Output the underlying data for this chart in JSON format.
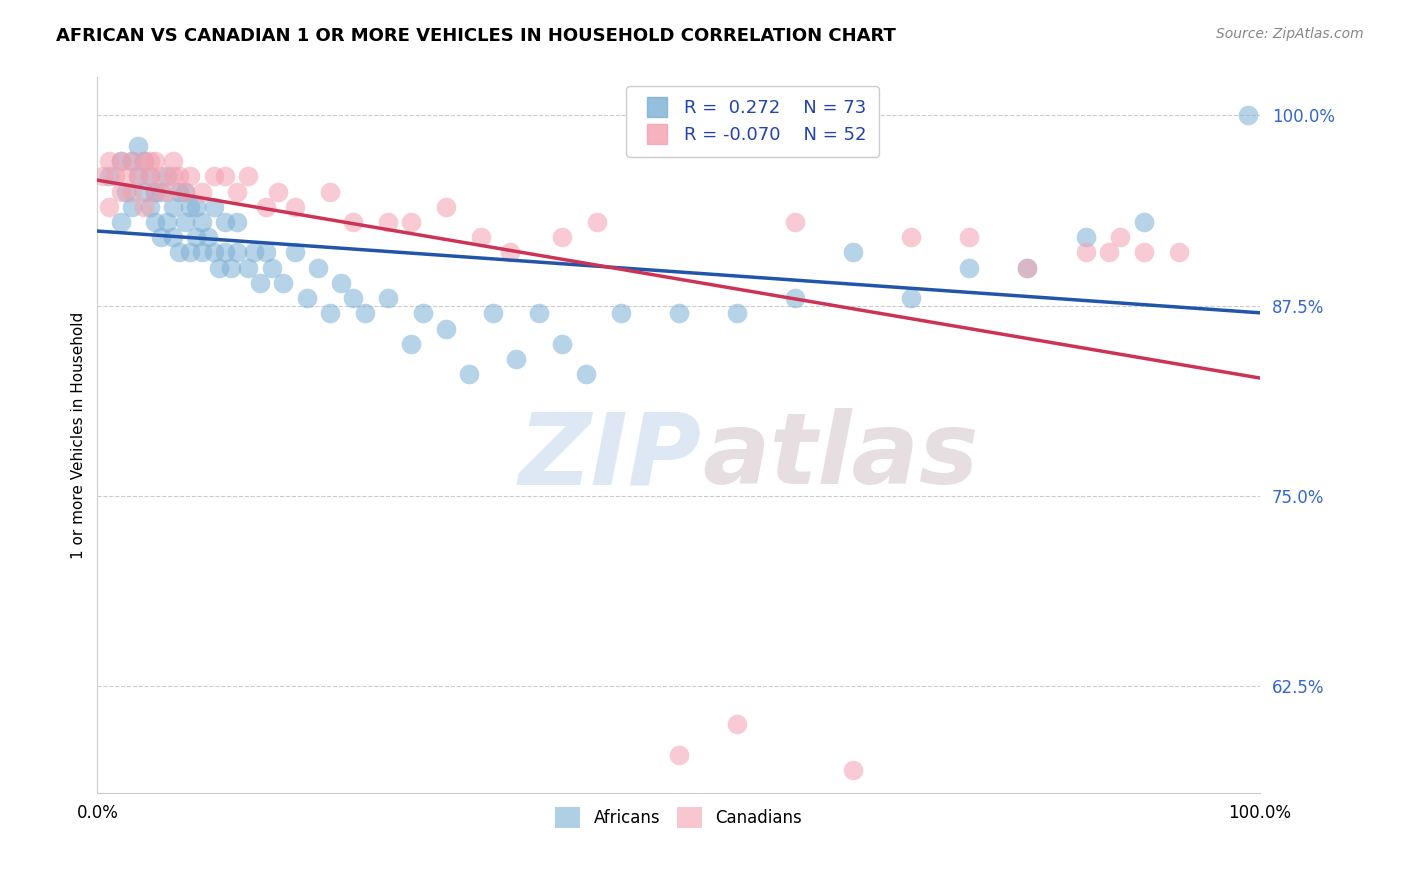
{
  "title": "AFRICAN VS CANADIAN 1 OR MORE VEHICLES IN HOUSEHOLD CORRELATION CHART",
  "source": "Source: ZipAtlas.com",
  "ylabel": "1 or more Vehicles in Household",
  "xlim": [
    0.0,
    1.0
  ],
  "ylim": [
    0.555,
    1.025
  ],
  "yticks": [
    0.625,
    0.75,
    0.875,
    1.0
  ],
  "ytick_labels": [
    "62.5%",
    "75.0%",
    "87.5%",
    "100.0%"
  ],
  "african_color": "#7bafd4",
  "canadian_color": "#f4a0b0",
  "african_line_color": "#2255aa",
  "canadian_line_color": "#cc3355",
  "african_R": 0.272,
  "african_N": 73,
  "canadian_R": -0.07,
  "canadian_N": 52,
  "legend_label_african": "Africans",
  "legend_label_canadian": "Canadians",
  "watermark_zip": "ZIP",
  "watermark_atlas": "atlas",
  "african_x": [
    0.01,
    0.02,
    0.02,
    0.025,
    0.03,
    0.03,
    0.035,
    0.035,
    0.04,
    0.04,
    0.045,
    0.045,
    0.05,
    0.05,
    0.055,
    0.055,
    0.06,
    0.06,
    0.065,
    0.065,
    0.07,
    0.07,
    0.075,
    0.075,
    0.08,
    0.08,
    0.085,
    0.085,
    0.09,
    0.09,
    0.095,
    0.1,
    0.1,
    0.105,
    0.11,
    0.11,
    0.115,
    0.12,
    0.12,
    0.13,
    0.135,
    0.14,
    0.145,
    0.15,
    0.16,
    0.17,
    0.18,
    0.19,
    0.2,
    0.21,
    0.22,
    0.23,
    0.25,
    0.27,
    0.28,
    0.3,
    0.32,
    0.34,
    0.36,
    0.38,
    0.4,
    0.42,
    0.45,
    0.5,
    0.55,
    0.6,
    0.65,
    0.7,
    0.75,
    0.8,
    0.85,
    0.9,
    0.99
  ],
  "african_y": [
    0.96,
    0.93,
    0.97,
    0.95,
    0.94,
    0.97,
    0.96,
    0.98,
    0.95,
    0.97,
    0.94,
    0.96,
    0.93,
    0.95,
    0.92,
    0.95,
    0.93,
    0.96,
    0.92,
    0.94,
    0.91,
    0.95,
    0.93,
    0.95,
    0.91,
    0.94,
    0.92,
    0.94,
    0.91,
    0.93,
    0.92,
    0.91,
    0.94,
    0.9,
    0.91,
    0.93,
    0.9,
    0.91,
    0.93,
    0.9,
    0.91,
    0.89,
    0.91,
    0.9,
    0.89,
    0.91,
    0.88,
    0.9,
    0.87,
    0.89,
    0.88,
    0.87,
    0.88,
    0.85,
    0.87,
    0.86,
    0.83,
    0.87,
    0.84,
    0.87,
    0.85,
    0.83,
    0.87,
    0.87,
    0.87,
    0.88,
    0.91,
    0.88,
    0.9,
    0.9,
    0.92,
    0.93,
    1.0
  ],
  "canadian_x": [
    0.005,
    0.01,
    0.01,
    0.015,
    0.02,
    0.02,
    0.025,
    0.03,
    0.03,
    0.035,
    0.04,
    0.04,
    0.045,
    0.045,
    0.05,
    0.05,
    0.055,
    0.06,
    0.065,
    0.065,
    0.07,
    0.075,
    0.08,
    0.09,
    0.1,
    0.11,
    0.12,
    0.13,
    0.145,
    0.155,
    0.17,
    0.2,
    0.22,
    0.25,
    0.27,
    0.3,
    0.33,
    0.355,
    0.4,
    0.43,
    0.5,
    0.55,
    0.6,
    0.65,
    0.7,
    0.75,
    0.8,
    0.85,
    0.87,
    0.88,
    0.9,
    0.93
  ],
  "canadian_y": [
    0.96,
    0.94,
    0.97,
    0.96,
    0.95,
    0.97,
    0.96,
    0.95,
    0.97,
    0.96,
    0.94,
    0.97,
    0.96,
    0.97,
    0.95,
    0.97,
    0.96,
    0.95,
    0.96,
    0.97,
    0.96,
    0.95,
    0.96,
    0.95,
    0.96,
    0.96,
    0.95,
    0.96,
    0.94,
    0.95,
    0.94,
    0.95,
    0.93,
    0.93,
    0.93,
    0.94,
    0.92,
    0.91,
    0.92,
    0.93,
    0.58,
    0.6,
    0.93,
    0.57,
    0.92,
    0.92,
    0.9,
    0.91,
    0.91,
    0.92,
    0.91,
    0.91
  ]
}
